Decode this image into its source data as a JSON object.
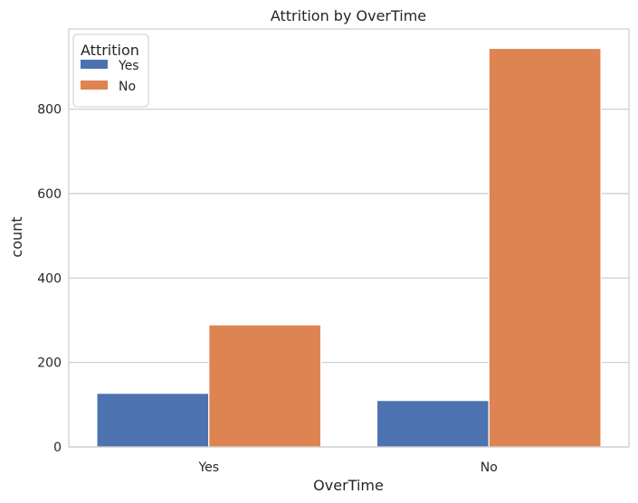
{
  "chart_data": {
    "type": "bar",
    "title": "Attrition by OverTime",
    "xlabel": "OverTime",
    "ylabel": "count",
    "categories": [
      "Yes",
      "No"
    ],
    "series": [
      {
        "name": "Yes",
        "color": "#4c72b0",
        "values": [
          127,
          110
        ]
      },
      {
        "name": "No",
        "color": "#dd8452",
        "values": [
          289,
          944
        ]
      }
    ],
    "ylim": [
      0,
      990
    ],
    "yticks": [
      0,
      200,
      400,
      600,
      800
    ],
    "grid": true,
    "legend": {
      "title": "Attrition",
      "position": "top-left"
    }
  }
}
